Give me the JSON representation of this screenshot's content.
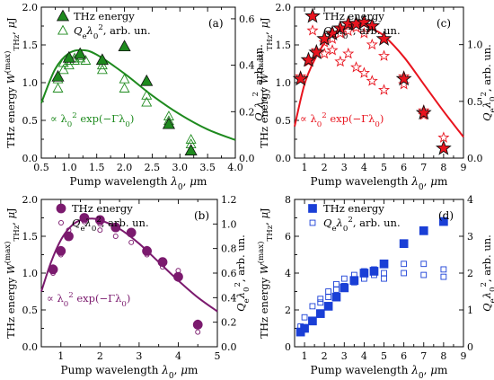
{
  "chart_data": [
    {
      "id": "a",
      "type": "scatter",
      "panel_label": "(a)",
      "color": "#1e8a1e",
      "marker": "triangle",
      "xlabel": "Pump wavelength λ0, μm",
      "ylabel": "THz energy W(max)THz, μJ",
      "ylabel_right": "Qeλ0², arb. un.",
      "xlim": [
        0.5,
        4.0
      ],
      "ylim": [
        0.0,
        2.0
      ],
      "ylim_right": [
        0.0,
        0.65
      ],
      "xticks": [
        "0.5",
        "1.0",
        "1.5",
        "2.0",
        "2.5",
        "3.0",
        "3.5",
        "4.0"
      ],
      "yticks": [
        "0.0",
        "0.5",
        "1.0",
        "1.5",
        "2.0"
      ],
      "yticks_right": [
        "0.0",
        "0.2",
        "0.4",
        "0.6"
      ],
      "legend": [
        "THz energy",
        "Qeλ0², arb. un."
      ],
      "fit_label": "∝ λ0² exp(−Γλ0)",
      "series_energy": {
        "x": [
          0.8,
          1.0,
          1.2,
          1.6,
          2.0,
          2.4,
          2.8,
          3.2
        ],
        "y": [
          1.08,
          1.33,
          1.38,
          1.3,
          1.48,
          1.02,
          0.45,
          0.1
        ]
      },
      "series_q": {
        "x": [
          0.8,
          0.8,
          0.9,
          0.9,
          1.0,
          1.0,
          1.1,
          1.1,
          1.2,
          1.2,
          1.3,
          1.6,
          1.6,
          2.0,
          2.0,
          2.4,
          2.4,
          2.8,
          2.8,
          3.2,
          3.2
        ],
        "y": [
          0.3,
          0.34,
          0.38,
          0.41,
          0.4,
          0.42,
          0.42,
          0.43,
          0.43,
          0.44,
          0.42,
          0.4,
          0.38,
          0.34,
          0.3,
          0.24,
          0.27,
          0.16,
          0.18,
          0.06,
          0.08
        ]
      },
      "fit": {
        "x": [
          0.5,
          0.75,
          1.0,
          1.25,
          1.5,
          2.0,
          2.5,
          3.0,
          3.5,
          4.0
        ],
        "y": [
          0.73,
          1.18,
          1.39,
          1.43,
          1.37,
          1.12,
          0.83,
          0.58,
          0.38,
          0.24
        ]
      }
    },
    {
      "id": "c",
      "type": "scatter",
      "panel_label": "(c)",
      "color": "#e8141e",
      "marker": "star",
      "xlabel": "Pump wavelength λ0, μm",
      "ylabel": "THz energy W(max)THz, μJ",
      "ylabel_right": "Qeλ0², arb. un.",
      "xlim": [
        0.5,
        9.0
      ],
      "ylim": [
        0.0,
        2.0
      ],
      "ylim_right": [
        0.0,
        1.33
      ],
      "xticks": [
        "1",
        "2",
        "3",
        "4",
        "5",
        "6",
        "7",
        "8",
        "9"
      ],
      "yticks": [
        "0.0",
        "0.5",
        "1.0",
        "1.5",
        "2.0"
      ],
      "yticks_right": [
        "0.0",
        "0.5",
        "1.0"
      ],
      "legend": [
        "THz energy",
        "Qeλ0², arb. un."
      ],
      "fit_label": "∝ λ0² exp(−Γλ0)",
      "series_energy": {
        "x": [
          0.8,
          1.2,
          1.6,
          2.0,
          2.4,
          2.8,
          3.2,
          3.6,
          4.0,
          4.4,
          5.0,
          6.0,
          7.0,
          8.0
        ],
        "y": [
          1.05,
          1.3,
          1.4,
          1.58,
          1.65,
          1.72,
          1.78,
          1.78,
          1.8,
          1.75,
          1.58,
          1.05,
          0.6,
          0.13
        ]
      },
      "series_q": {
        "x": [
          0.8,
          1.2,
          1.6,
          2.0,
          2.0,
          2.4,
          2.4,
          2.8,
          2.8,
          3.2,
          3.2,
          3.6,
          3.6,
          4.0,
          4.0,
          4.4,
          4.4,
          5.0,
          5.0,
          6.0,
          6.0,
          7.0,
          7.0,
          8.0
        ],
        "y": [
          0.72,
          0.85,
          0.95,
          1.02,
          0.92,
          1.05,
          0.95,
          1.1,
          0.85,
          1.12,
          0.92,
          1.15,
          0.8,
          1.1,
          0.75,
          1.0,
          0.68,
          0.9,
          0.6,
          0.72,
          0.65,
          0.42,
          0.38,
          0.18
        ]
      },
      "fit": {
        "x": [
          0.5,
          1.0,
          1.5,
          2.0,
          2.5,
          3.0,
          3.5,
          4.0,
          4.5,
          5.0,
          6.0,
          7.0,
          8.0,
          9.0
        ],
        "y": [
          0.42,
          0.98,
          1.3,
          1.52,
          1.66,
          1.74,
          1.77,
          1.76,
          1.7,
          1.62,
          1.34,
          0.98,
          0.62,
          0.28
        ]
      }
    },
    {
      "id": "b",
      "type": "scatter",
      "panel_label": "(b)",
      "color": "#7b1a6e",
      "marker": "circle",
      "xlabel": "Pump wavelength λ0, μm",
      "ylabel": "THz energy W(max)THz, μJ",
      "ylabel_right": "Qeλ0², arb. un.",
      "xlim": [
        0.5,
        5.0
      ],
      "ylim": [
        0.0,
        2.0
      ],
      "ylim_right": [
        0.0,
        1.2
      ],
      "xticks": [
        "1",
        "2",
        "3",
        "4",
        "5"
      ],
      "yticks": [
        "0.0",
        "0.5",
        "1.0",
        "1.5",
        "2.0"
      ],
      "yticks_right": [
        "0.0",
        "0.2",
        "0.4",
        "0.6",
        "0.8",
        "1.0",
        "1.2"
      ],
      "legend": [
        "THz energy",
        "Qeλ0², arb. un."
      ],
      "fit_label": "∝ λ0² exp(−Γλ0)",
      "series_energy": {
        "x": [
          0.8,
          1.0,
          1.2,
          1.6,
          2.0,
          2.4,
          2.8,
          3.2,
          3.6,
          4.0,
          4.5
        ],
        "y": [
          1.05,
          1.3,
          1.5,
          1.75,
          1.72,
          1.62,
          1.55,
          1.3,
          1.15,
          0.95,
          0.3
        ]
      },
      "series_q": {
        "x": [
          0.8,
          0.8,
          1.0,
          1.0,
          1.2,
          1.2,
          1.6,
          1.6,
          2.0,
          2.0,
          2.4,
          2.4,
          2.8,
          2.8,
          3.2,
          3.2,
          3.6,
          3.6,
          4.0,
          4.0,
          4.5,
          4.5
        ],
        "y": [
          0.6,
          0.65,
          0.75,
          0.8,
          0.9,
          0.95,
          1.05,
          1.02,
          1.0,
          0.95,
          0.98,
          0.9,
          0.92,
          0.85,
          0.8,
          0.75,
          0.7,
          0.65,
          0.62,
          0.55,
          0.2,
          0.12
        ]
      },
      "fit": {
        "x": [
          0.5,
          0.75,
          1.0,
          1.25,
          1.5,
          1.75,
          2.0,
          2.5,
          3.0,
          3.5,
          4.0,
          4.5,
          5.0
        ],
        "y": [
          0.75,
          1.15,
          1.45,
          1.63,
          1.72,
          1.74,
          1.72,
          1.6,
          1.4,
          1.15,
          0.9,
          0.67,
          0.48
        ]
      }
    },
    {
      "id": "d",
      "type": "scatter",
      "panel_label": "(d)",
      "color": "#1a3fd6",
      "marker": "square",
      "xlabel": "Pump wavelength λ0, μm",
      "ylabel": "THz energy W(max)THz, μJ",
      "ylabel_right": "Qeλ0², arb. un.",
      "xlim": [
        0.5,
        9.0
      ],
      "ylim": [
        0.0,
        8.0
      ],
      "ylim_right": [
        0.0,
        4.0
      ],
      "xticks": [
        "1",
        "2",
        "3",
        "4",
        "5",
        "6",
        "7",
        "8",
        "9"
      ],
      "yticks": [
        "0",
        "2",
        "4",
        "6",
        "8"
      ],
      "yticks_right": [
        "0",
        "1",
        "2",
        "3",
        "4"
      ],
      "legend": [
        "THz energy",
        "Qeλ0², arb. un."
      ],
      "series_energy": {
        "x": [
          0.8,
          1.0,
          1.4,
          1.8,
          2.2,
          2.6,
          3.0,
          3.5,
          4.0,
          4.5,
          5.0,
          6.0,
          7.0,
          8.0
        ],
        "y": [
          0.8,
          1.0,
          1.4,
          1.8,
          2.2,
          2.7,
          3.2,
          3.6,
          4.0,
          4.1,
          4.5,
          5.6,
          6.3,
          6.8
        ]
      },
      "series_q": {
        "x": [
          0.8,
          1.0,
          1.4,
          1.8,
          1.8,
          2.2,
          2.2,
          2.6,
          2.6,
          3.0,
          3.0,
          3.5,
          3.5,
          4.0,
          4.0,
          4.5,
          4.5,
          5.0,
          5.0,
          6.0,
          6.0,
          7.0,
          7.0,
          8.0,
          8.0
        ],
        "y": [
          0.55,
          0.8,
          1.1,
          1.3,
          1.2,
          1.5,
          1.35,
          1.7,
          1.55,
          1.85,
          1.65,
          1.95,
          1.75,
          2.05,
          1.85,
          2.1,
          1.95,
          2.0,
          1.85,
          2.25,
          2.0,
          2.25,
          1.95,
          2.1,
          1.9
        ]
      }
    }
  ]
}
